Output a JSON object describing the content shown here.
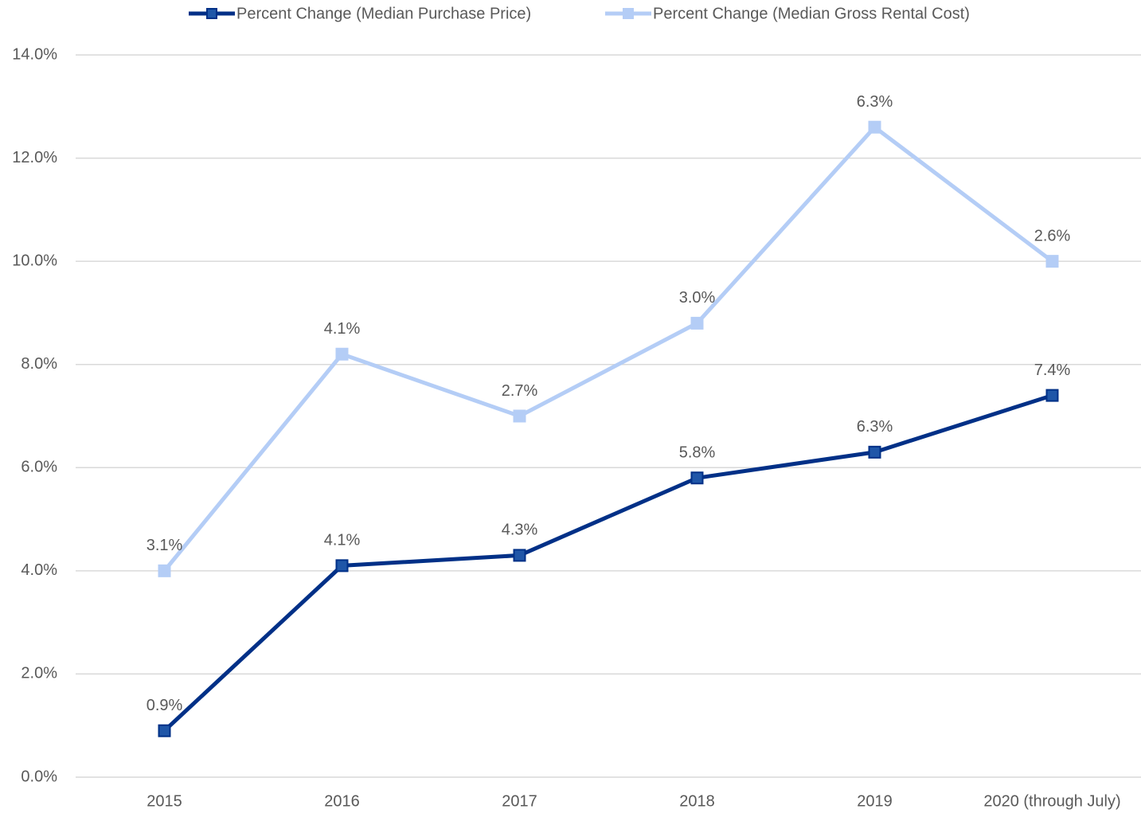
{
  "chart_data": {
    "type": "line",
    "stacked": true,
    "categories": [
      "2015",
      "2016",
      "2017",
      "2018",
      "2019",
      "2020 (through July)"
    ],
    "series": [
      {
        "name": "Percent Change (Median Purchase Price)",
        "color": "#003087",
        "marker_color": "#1f56a8",
        "values": [
          0.9,
          4.1,
          4.3,
          5.8,
          6.3,
          7.4
        ],
        "value_labels": [
          "0.9%",
          "4.1%",
          "4.3%",
          "5.8%",
          "6.3%",
          "7.4%"
        ]
      },
      {
        "name": "Percent Change (Median Gross Rental Cost)",
        "color": "#b4cdf6",
        "marker_color": "#b4cdf6",
        "values": [
          3.1,
          4.1,
          2.7,
          3.0,
          6.3,
          2.6
        ],
        "value_labels": [
          "3.1%",
          "4.1%",
          "2.7%",
          "3.0%",
          "6.3%",
          "2.6%"
        ]
      }
    ],
    "ylim": [
      0,
      14
    ],
    "yticks": [
      {
        "value": 0,
        "label": "0.0%"
      },
      {
        "value": 2,
        "label": "2.0%"
      },
      {
        "value": 4,
        "label": "4.0%"
      },
      {
        "value": 6,
        "label": "6.0%"
      },
      {
        "value": 8,
        "label": "8.0%"
      },
      {
        "value": 10,
        "label": "10.0%"
      },
      {
        "value": 12,
        "label": "12.0%"
      },
      {
        "value": 14,
        "label": "14.0%"
      }
    ],
    "grid": true,
    "legend": "top"
  }
}
